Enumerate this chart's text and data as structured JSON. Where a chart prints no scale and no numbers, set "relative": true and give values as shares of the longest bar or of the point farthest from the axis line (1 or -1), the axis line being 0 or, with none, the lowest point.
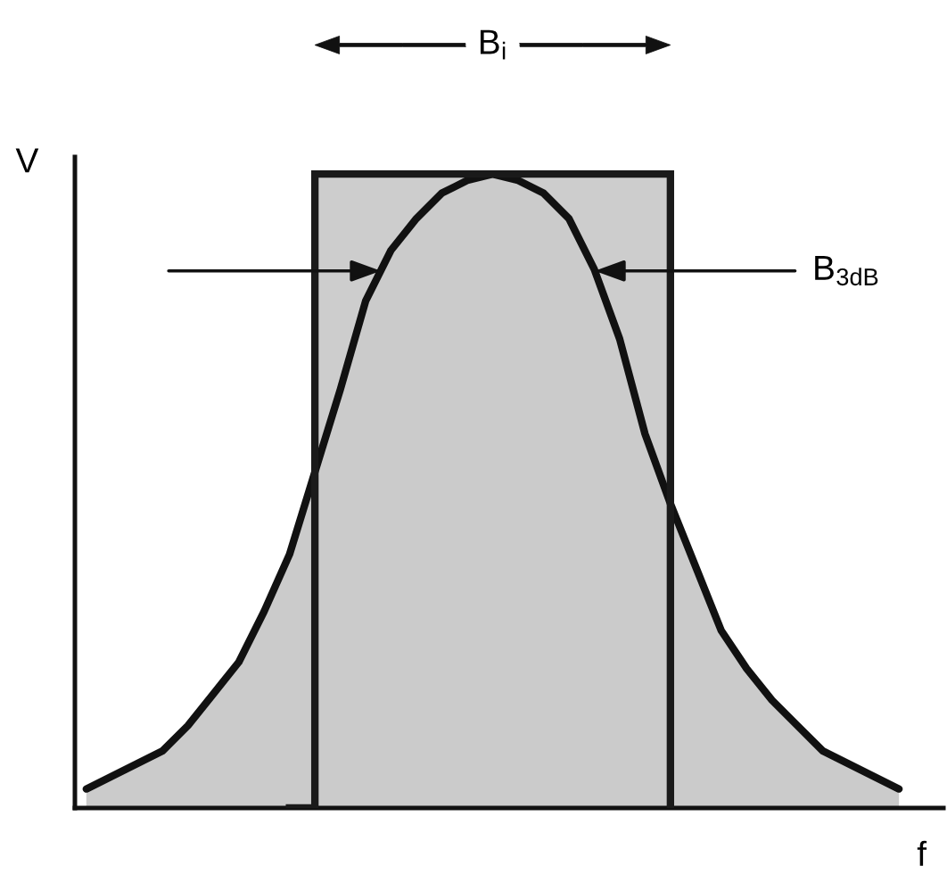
{
  "chart_data": {
    "type": "area",
    "relative": true,
    "xlabel": "f",
    "ylabel": "V",
    "categories": [
      null,
      null,
      null,
      null,
      null,
      null,
      null,
      null,
      null,
      null,
      null,
      null,
      null,
      null,
      null,
      null,
      null,
      null,
      null,
      null,
      null,
      null,
      null,
      null,
      null,
      null,
      null,
      null,
      null,
      null,
      null,
      null,
      null
    ],
    "series": [
      {
        "color": "#111111",
        "values": [
          0.03,
          0.05,
          0.07,
          0.09,
          0.13,
          0.18,
          0.23,
          0.31,
          0.4,
          0.53,
          0.66,
          0.8,
          0.88,
          0.93,
          0.97,
          0.99,
          1.0,
          0.99,
          0.97,
          0.93,
          0.85,
          0.74,
          0.59,
          0.48,
          0.38,
          0.28,
          0.22,
          0.17,
          0.13,
          0.09,
          0.07,
          0.05,
          0.03
        ]
      },
      {
        "type": "step",
        "color": "#1a1a1a",
        "values": [
          null,
          null,
          null,
          null,
          null,
          null,
          null,
          null,
          0,
          1,
          1,
          1,
          1,
          1,
          1,
          1,
          1,
          1,
          1,
          1,
          1,
          1,
          1,
          0,
          null,
          null,
          null,
          null,
          null,
          null,
          null,
          null,
          null
        ]
      }
    ],
    "annotations": [
      "B$_{i}$",
      "B$_{3dB}$"
    ]
  }
}
